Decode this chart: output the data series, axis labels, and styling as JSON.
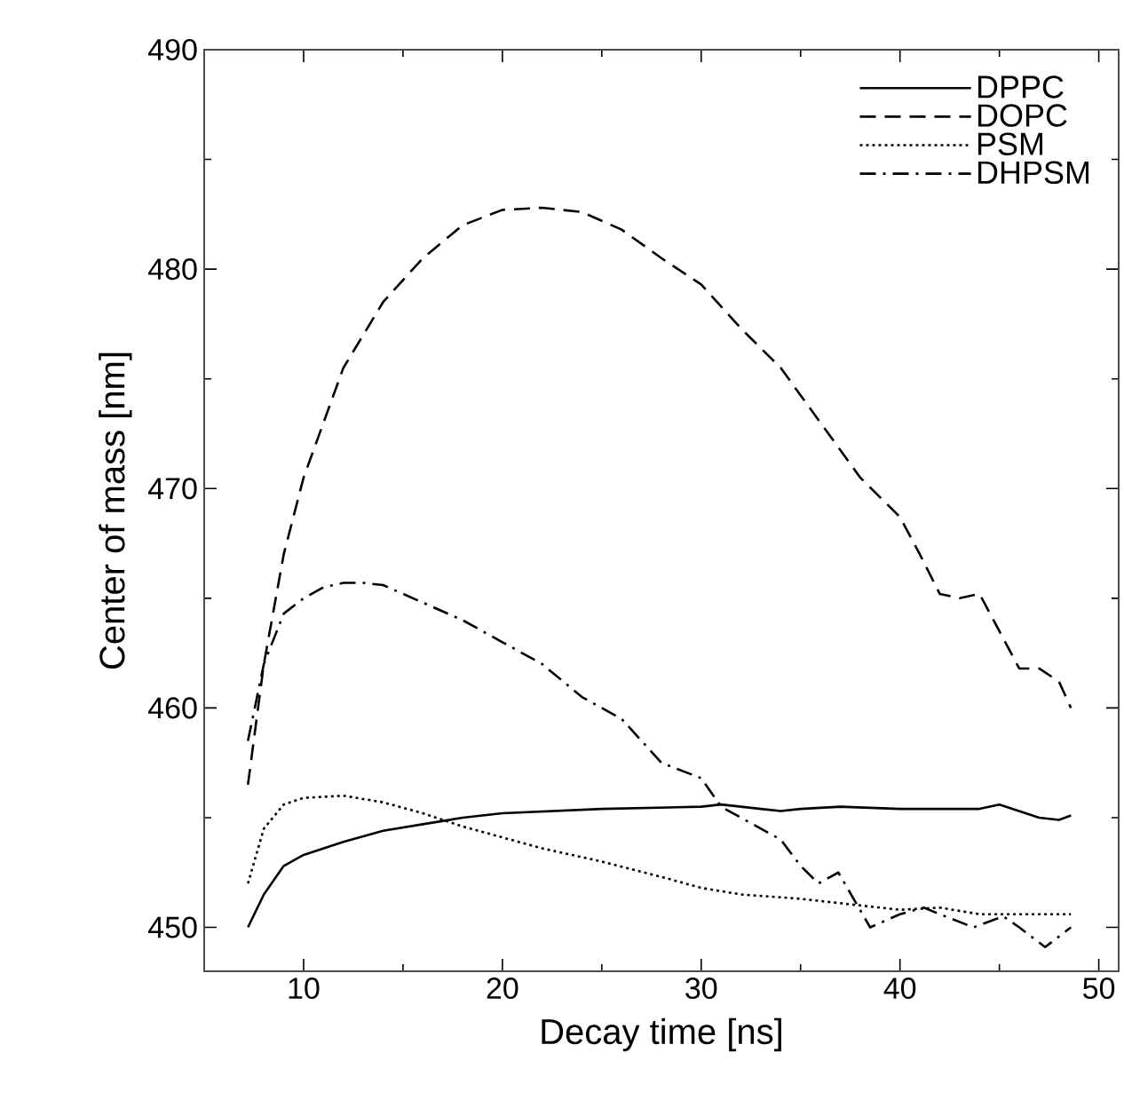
{
  "chart_data": {
    "type": "line",
    "xlabel": "Decay time [ns]",
    "ylabel": "Center of mass [nm]",
    "xlim": [
      5,
      51
    ],
    "ylim": [
      448,
      490
    ],
    "xticks": [
      {
        "value": 5,
        "label": null
      },
      10,
      {
        "value": 15,
        "label": null
      },
      20,
      {
        "value": 25,
        "label": null
      },
      30,
      {
        "value": 35,
        "label": null
      },
      40,
      {
        "value": 45,
        "label": null
      },
      50
    ],
    "yticks": [
      450,
      {
        "value": 455,
        "label": null
      },
      460,
      {
        "value": 465,
        "label": null
      },
      470,
      {
        "value": 475,
        "label": null
      },
      480,
      {
        "value": 485,
        "label": null
      },
      490
    ],
    "legend": "top right",
    "grid": false,
    "series": [
      {
        "name": "DPPC",
        "color": "#000000",
        "line_style": "solid",
        "x": [
          7.2,
          8,
          9,
          10,
          12,
          14,
          16,
          18,
          20,
          25,
          30,
          31,
          33,
          34,
          35,
          37,
          40,
          44,
          45,
          47,
          48,
          48.6
        ],
        "values": [
          450,
          451.5,
          452.8,
          453.3,
          453.9,
          454.4,
          454.7,
          455,
          455.2,
          455.4,
          455.5,
          455.6,
          455.4,
          455.3,
          455.4,
          455.5,
          455.4,
          455.4,
          455.6,
          455,
          454.9,
          455.1
        ]
      },
      {
        "name": "DOPC",
        "color": "#000000",
        "line_style": "dashed",
        "x": [
          7.2,
          8,
          9,
          10,
          12,
          14,
          16,
          18,
          20,
          22,
          24,
          26,
          28,
          30,
          32,
          34,
          36,
          38,
          40,
          41,
          42,
          43,
          44,
          45,
          46,
          47,
          48,
          48.6
        ],
        "values": [
          456.5,
          462,
          467,
          470.5,
          475.5,
          478.5,
          480.5,
          482,
          482.7,
          482.8,
          482.6,
          481.8,
          480.5,
          479.3,
          477.3,
          475.5,
          473,
          470.5,
          468.7,
          467,
          465.2,
          465,
          465.2,
          463.5,
          461.8,
          461.8,
          461.2,
          460
        ]
      },
      {
        "name": "PSM",
        "color": "#000000",
        "line_style": "dotted",
        "x": [
          7.2,
          8,
          9,
          10,
          12,
          14,
          16,
          18,
          20,
          22,
          25,
          28,
          30,
          32,
          35,
          38,
          40,
          42,
          44,
          46,
          48.6
        ],
        "values": [
          452,
          454.5,
          455.6,
          455.9,
          456,
          455.7,
          455.2,
          454.6,
          454.1,
          453.6,
          453,
          452.3,
          451.8,
          451.5,
          451.3,
          451,
          450.8,
          450.9,
          450.6,
          450.6,
          450.6
        ]
      },
      {
        "name": "DHPSM",
        "color": "#000000",
        "line_style": "dashdot",
        "x": [
          7.2,
          8,
          9,
          10,
          11,
          12,
          13,
          14,
          16,
          18,
          20,
          22,
          24,
          26,
          28,
          30,
          31,
          32,
          34,
          35,
          35.9,
          36.9,
          38.5,
          40,
          41.2,
          42,
          43.7,
          45.2,
          46,
          47.3,
          48.6
        ],
        "values": [
          458.5,
          462,
          464.3,
          465,
          465.5,
          465.7,
          465.7,
          465.6,
          464.8,
          464,
          463,
          462,
          460.5,
          459.5,
          457.5,
          456.8,
          455.5,
          455,
          454,
          452.8,
          452,
          452.5,
          450,
          450.6,
          450.9,
          450.6,
          450,
          450.5,
          450,
          449.1,
          450
        ]
      }
    ]
  }
}
